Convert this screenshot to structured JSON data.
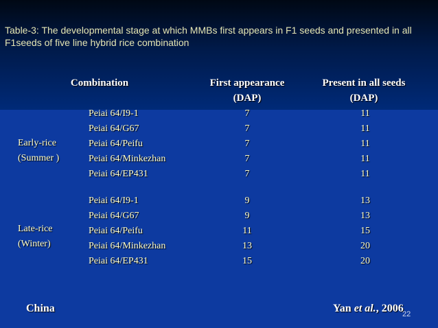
{
  "title": "Table-3: The developmental stage at which MMBs first appears in F1 seeds and presented in all F1seeds of five line hybrid rice combination",
  "table": {
    "headers": {
      "combination": "Combination",
      "first_line1": "First appearance",
      "first_line2": "(DAP)",
      "present_line1": "Present in all seeds",
      "present_line2": "(DAP)"
    },
    "groups": [
      {
        "label_line1": "Early-rice",
        "label_line2": "(Summer )",
        "rows": [
          {
            "combination": "Peiai 64/I9-1",
            "first": "7",
            "present": "11"
          },
          {
            "combination": "Peiai 64/G67",
            "first": "7",
            "present": "11"
          },
          {
            "combination": "Peiai 64/Peifu",
            "first": "7",
            "present": "11"
          },
          {
            "combination": "Peiai 64/Minkezhan",
            "first": "7",
            "present": "11"
          },
          {
            "combination": "Peiai 64/EP431",
            "first": "7",
            "present": "11"
          }
        ]
      },
      {
        "label_line1": "Late-rice",
        "label_line2": "(Winter)",
        "rows": [
          {
            "combination": "Peiai 64/I9-1",
            "first": "9",
            "present": "13"
          },
          {
            "combination": "Peiai 64/G67",
            "first": "9",
            "present": "13"
          },
          {
            "combination": "Peiai 64/Peifu",
            "first": "11",
            "present": "15"
          },
          {
            "combination": "Peiai 64/Minkezhan",
            "first": "13",
            "present": "20"
          },
          {
            "combination": "Peiai 64/EP431",
            "first": "15",
            "present": "20"
          }
        ]
      }
    ]
  },
  "footer": {
    "country": "China",
    "citation_author": "Yan ",
    "citation_etal": "et al.",
    "citation_year": ", 2006"
  },
  "page_number": "22",
  "colors": {
    "background": "#0d3aa0",
    "title": "#e6e6b4",
    "cell_text": "#ffffcc"
  }
}
